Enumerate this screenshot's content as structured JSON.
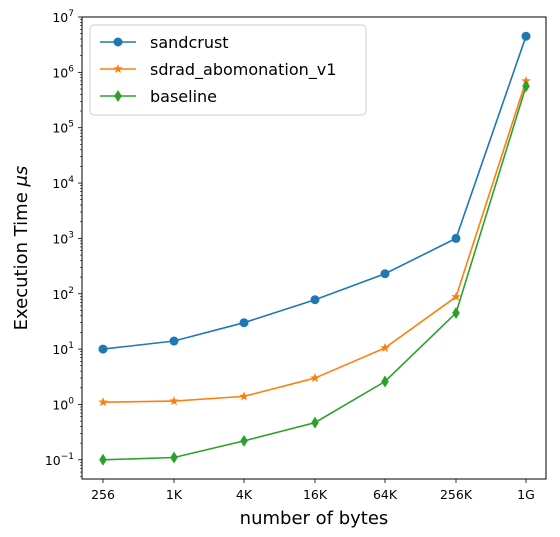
{
  "chart_data": {
    "type": "line",
    "xlabel": "number of bytes",
    "ylabel": "Execution Time μs",
    "ylabel_text": "Execution Time ",
    "ylabel_symbol": "μs",
    "yscale": "log",
    "ylim": [
      0.045,
      10000000
    ],
    "categories": [
      "256",
      "1K",
      "4K",
      "16K",
      "64K",
      "256K",
      "1G"
    ],
    "y_ticks": [
      {
        "value": 0.1,
        "base": "10",
        "exp": "−1"
      },
      {
        "value": 1,
        "base": "10",
        "exp": "0"
      },
      {
        "value": 10,
        "base": "10",
        "exp": "1"
      },
      {
        "value": 100,
        "base": "10",
        "exp": "2"
      },
      {
        "value": 1000,
        "base": "10",
        "exp": "3"
      },
      {
        "value": 10000,
        "base": "10",
        "exp": "4"
      },
      {
        "value": 100000,
        "base": "10",
        "exp": "5"
      },
      {
        "value": 1000000,
        "base": "10",
        "exp": "6"
      },
      {
        "value": 10000000,
        "base": "10",
        "exp": "7"
      }
    ],
    "grid": false,
    "legend_position": "top-left",
    "series": [
      {
        "name": "sandcrust",
        "color": "#1f77b4",
        "marker": "circle",
        "values": [
          10,
          14,
          30,
          78,
          230,
          1000,
          4500000
        ]
      },
      {
        "name": "sdrad_abomonation_v1",
        "color": "#ff7f0e",
        "marker": "star",
        "values": [
          1.1,
          1.15,
          1.4,
          3.0,
          10.5,
          88,
          700000
        ]
      },
      {
        "name": "baseline",
        "color": "#2ca02c",
        "marker": "diamond",
        "values": [
          0.1,
          0.11,
          0.22,
          0.47,
          2.6,
          45,
          560000
        ]
      }
    ]
  }
}
